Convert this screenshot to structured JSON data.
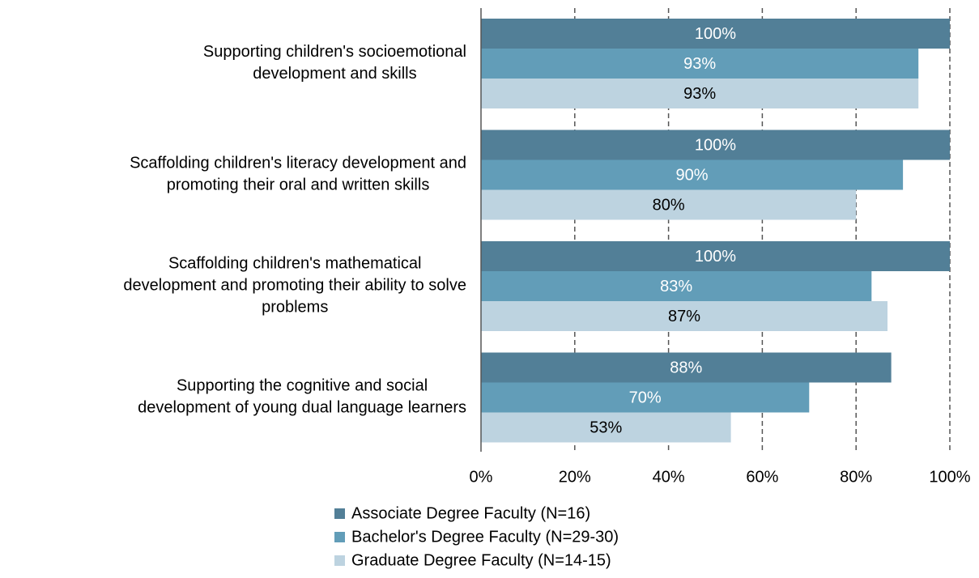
{
  "chart_data": {
    "type": "bar",
    "orientation": "horizontal",
    "categories": [
      "Supporting children's socioemotional\ndevelopment and skills",
      "Scaffolding children's literacy development and\npromoting their oral and written skills",
      "Scaffolding children's mathematical\ndevelopment and promoting their ability to solve\nproblems",
      "Supporting the cognitive and social\ndevelopment of young dual language learners"
    ],
    "series": [
      {
        "name": "Associate Degree Faculty (N=16)",
        "color": "#527f97",
        "label_color": "#ffffff",
        "values": [
          100,
          100,
          100,
          87.5
        ],
        "value_labels": [
          "100%",
          "100%",
          "100%",
          "88%"
        ]
      },
      {
        "name": "Bachelor's Degree Faculty (N=29-30)",
        "color": "#629db8",
        "label_color": "#ffffff",
        "values": [
          93.3,
          90,
          83.3,
          70
        ],
        "value_labels": [
          "93%",
          "90%",
          "83%",
          "70%"
        ]
      },
      {
        "name": "Graduate Degree Faculty (N=14-15)",
        "color": "#bdd3e0",
        "label_color": "#000000",
        "values": [
          93.3,
          80,
          86.7,
          53.3
        ],
        "value_labels": [
          "93%",
          "80%",
          "87%",
          "53%"
        ]
      }
    ],
    "xlim": [
      0,
      100
    ],
    "xticks": [
      {
        "value": 0,
        "label": "0%"
      },
      {
        "value": 20,
        "label": "20%"
      },
      {
        "value": 40,
        "label": "40%"
      },
      {
        "value": 60,
        "label": "60%"
      },
      {
        "value": 80,
        "label": "80%"
      },
      {
        "value": 100,
        "label": "100%"
      }
    ],
    "grid": true,
    "legend": "bottom"
  }
}
